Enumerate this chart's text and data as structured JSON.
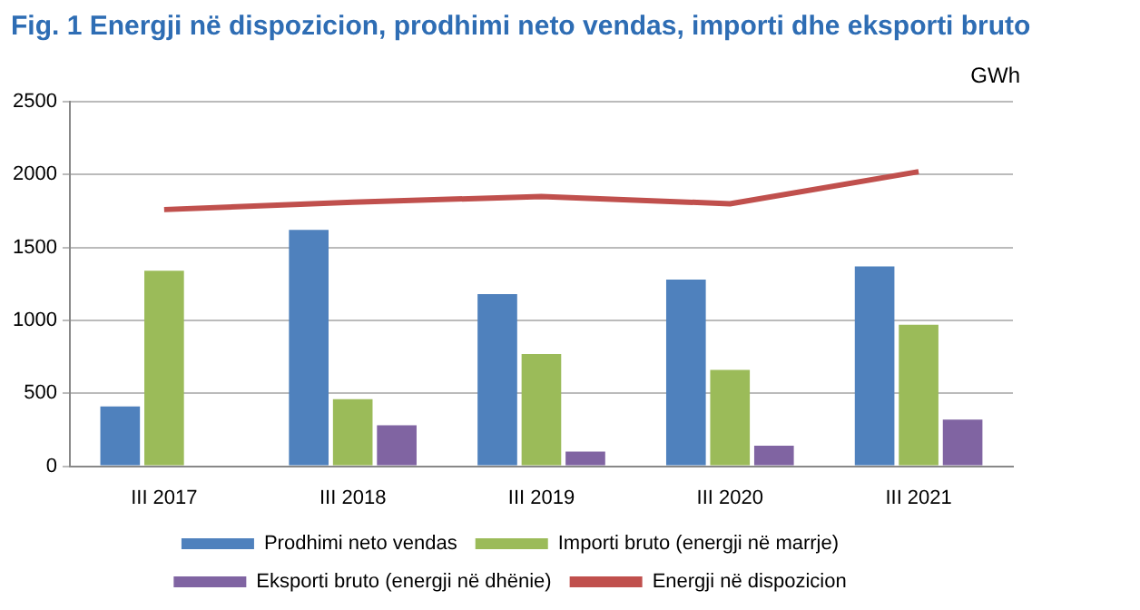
{
  "chart_data": {
    "type": "bar",
    "title": "Fig. 1 Energji në dispozicion, prodhimi neto vendas, importi dhe eksporti bruto",
    "ylabel": "GWh",
    "categories": [
      "III 2017",
      "III 2018",
      "III 2019",
      "III 2020",
      "III 2021"
    ],
    "series": [
      {
        "name": "Prodhimi neto vendas",
        "color": "#4f81bd",
        "values": [
          410,
          1620,
          1180,
          1280,
          1370
        ]
      },
      {
        "name": "Importi bruto (energji në marrje)",
        "color": "#9bbb59",
        "values": [
          1340,
          460,
          770,
          660,
          970
        ]
      },
      {
        "name": "Eksporti bruto (energji në dhënie)",
        "color": "#8064a2",
        "values": [
          null,
          280,
          100,
          140,
          320
        ]
      },
      {
        "name": "Energji në dispozicion",
        "type": "line",
        "color": "#c0504d",
        "values": [
          1760,
          1810,
          1850,
          1800,
          2020
        ]
      }
    ],
    "ylim": [
      0,
      2500
    ],
    "yticks": [
      0,
      500,
      1000,
      1500,
      2000,
      2500
    ],
    "grid": "y",
    "legend": "bottom",
    "marker": "none"
  }
}
